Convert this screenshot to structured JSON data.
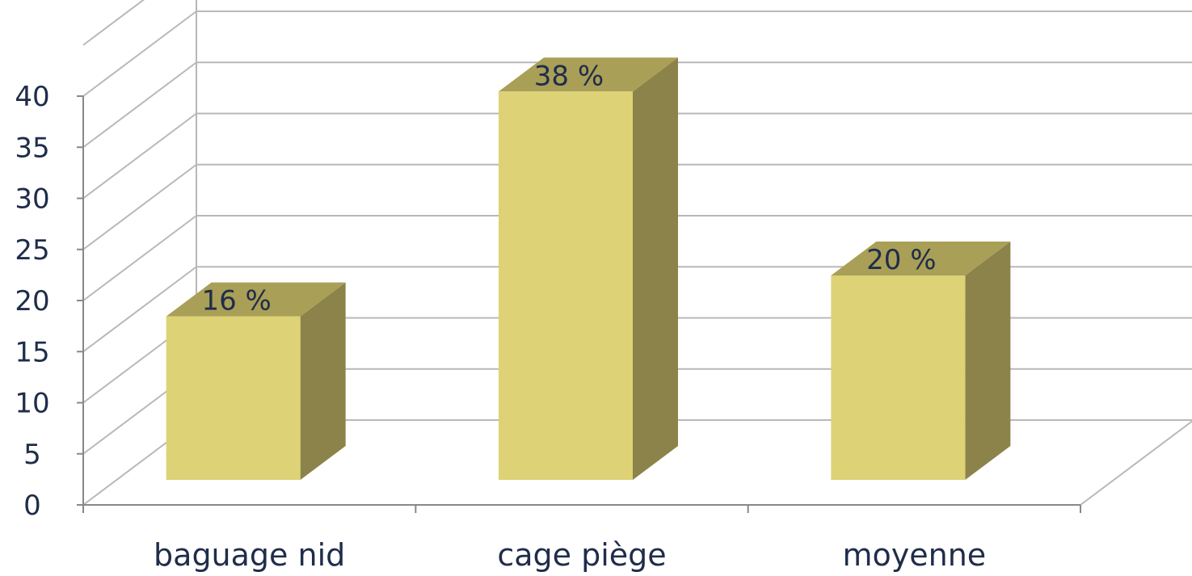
{
  "chart_data": {
    "type": "bar",
    "style": "3d-column",
    "categories": [
      "baguage nid",
      "cage piège",
      "moyenne"
    ],
    "values": [
      16,
      38,
      20
    ],
    "data_labels": [
      "16 %",
      "38 %",
      "20 %"
    ],
    "y_ticks": [
      "0",
      "5",
      "10",
      "15",
      "20",
      "25",
      "30",
      "35",
      "40"
    ],
    "ylim": [
      0,
      40
    ],
    "grid": true,
    "legend": "none",
    "colors": {
      "bar_front": "#ddd276",
      "bar_top": "#a99f56",
      "bar_side": "#8b8349",
      "grid": "#b8b8b8",
      "text": "#1f2d4a"
    }
  }
}
